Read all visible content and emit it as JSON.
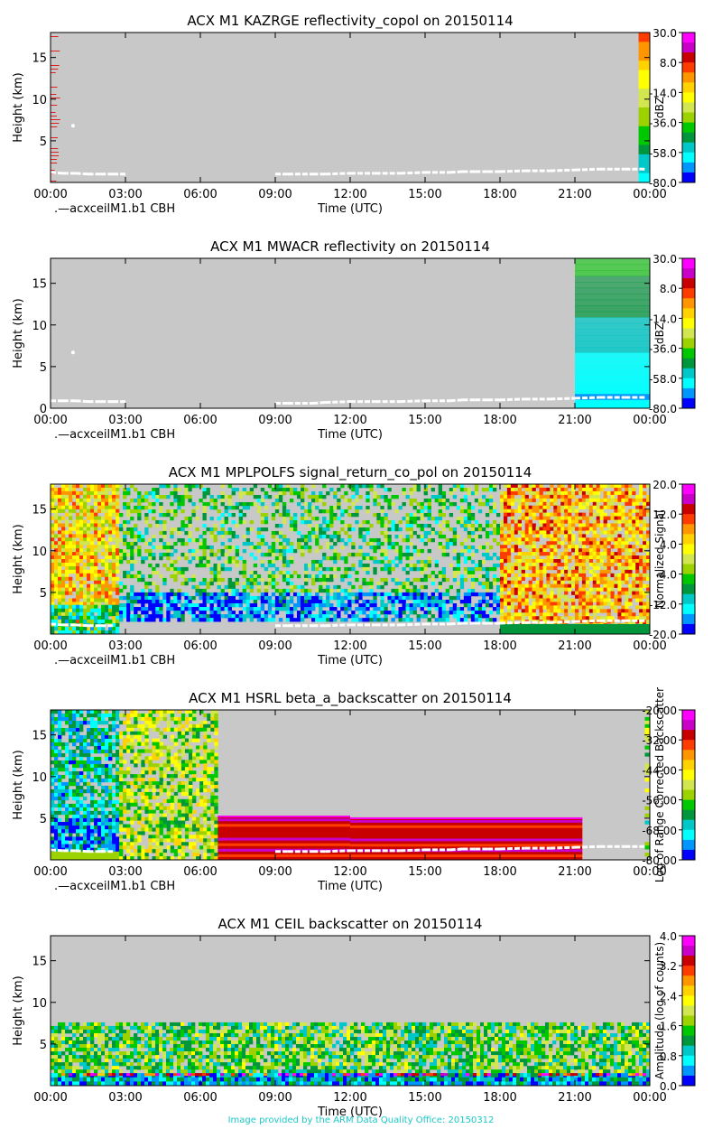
{
  "credit": "Image provided by the ARM Data Quality Office: 20150312",
  "colormap": [
    "#ff00ff",
    "#c800c8",
    "#c80000",
    "#ff3c00",
    "#ff9600",
    "#ffd200",
    "#ffff00",
    "#d2e650",
    "#9bd200",
    "#00c800",
    "#00963c",
    "#00c8c8",
    "#00ffff",
    "#0096ff",
    "#0000ff"
  ],
  "background_color": "#c8c8c8",
  "cbh_color": "#ffffff",
  "chart_data": [
    {
      "type": "heatmap",
      "title": "ACX M1 KAZRGE reflectivity_copol on 20150114",
      "xlabel": "Time (UTC)",
      "ylabel": "Height (km)",
      "xticks": [
        "00:00",
        "03:00",
        "06:00",
        "09:00",
        "12:00",
        "15:00",
        "18:00",
        "21:00",
        "00:00"
      ],
      "yticks": [
        5,
        10,
        15
      ],
      "xlim": [
        0,
        24
      ],
      "ylim": [
        0,
        18
      ],
      "legend": ".—acxceilM1.b1 CBH",
      "colorbar": {
        "label": "dBZ",
        "ticks": [
          "30.0",
          "8.0",
          "-14.0",
          "-36.0",
          "-58.0",
          "-80.0"
        ],
        "range": [
          -80,
          30
        ]
      },
      "cbh": {
        "x": [
          0.0,
          0.5,
          1.0,
          1.5,
          2.0,
          2.5,
          3.0,
          9.0,
          9.5,
          10.5,
          11.0,
          12.0,
          13.0,
          14.0,
          15.0,
          16.0,
          16.5,
          17.0,
          17.5,
          18.0,
          19.0,
          20.0,
          21.0,
          22.0,
          23.0,
          23.8
        ],
        "y": [
          1.2,
          1.1,
          1.1,
          1.0,
          1.0,
          1.0,
          1.0,
          1.0,
          1.0,
          1.0,
          1.0,
          1.1,
          1.1,
          1.1,
          1.2,
          1.2,
          1.3,
          1.3,
          1.3,
          1.3,
          1.4,
          1.4,
          1.5,
          1.6,
          1.6,
          1.6
        ]
      },
      "isolated_points": [
        {
          "x": 0.9,
          "y": 6.8
        }
      ],
      "regions": [
        {
          "x0": 0.0,
          "x1": 0.4,
          "y0": 0,
          "y1": 18,
          "value": -20,
          "density": 0.15,
          "mode": "stripes"
        },
        {
          "x0": 23.55,
          "x1": 24.0,
          "y0": 0,
          "y1": 18,
          "value": -14,
          "density": 1.0,
          "mode": "gradient_top"
        }
      ]
    },
    {
      "type": "heatmap",
      "title": "ACX M1 MWACR reflectivity on 20150114",
      "xlabel": "Time (UTC)",
      "ylabel": "Height (km)",
      "xticks": [
        "00:00",
        "03:00",
        "06:00",
        "09:00",
        "12:00",
        "15:00",
        "18:00",
        "21:00",
        "00:00"
      ],
      "yticks": [
        0,
        5,
        10,
        15
      ],
      "xlim": [
        0,
        24
      ],
      "ylim": [
        0,
        18
      ],
      "legend": ".—acxceilM1.b1 CBH",
      "colorbar": {
        "label": "dBZ",
        "ticks": [
          "30.0",
          "8.0",
          "-14.0",
          "-36.0",
          "-58.0",
          "-80.0"
        ],
        "range": [
          -80,
          30
        ]
      },
      "cbh": {
        "x": [
          0.0,
          0.5,
          1.0,
          1.5,
          2.0,
          2.5,
          3.0,
          9.0,
          9.5,
          10.5,
          11.0,
          12.0,
          13.0,
          14.0,
          15.0,
          16.0,
          16.5,
          17.0,
          17.5,
          18.0,
          19.0,
          20.0,
          21.0,
          22.0,
          23.0,
          23.8
        ],
        "y": [
          0.9,
          0.9,
          0.9,
          0.8,
          0.8,
          0.8,
          0.8,
          0.6,
          0.6,
          0.6,
          0.7,
          0.8,
          0.8,
          0.8,
          0.9,
          0.9,
          1.0,
          1.0,
          1.0,
          1.0,
          1.1,
          1.1,
          1.2,
          1.3,
          1.3,
          1.3
        ]
      },
      "isolated_points": [
        {
          "x": 0.9,
          "y": 6.7
        }
      ],
      "regions": [
        {
          "x0": 21.0,
          "x1": 24.0,
          "y0": 1.0,
          "y1": 18,
          "value": -40,
          "density": 1.0,
          "mode": "vertical_fade"
        },
        {
          "x0": 21.0,
          "x1": 24.0,
          "y0": 0,
          "y1": 1.0,
          "value": -62,
          "density": 1.0,
          "mode": "solid"
        }
      ]
    },
    {
      "type": "heatmap",
      "title": "ACX M1 MPLPOLFS signal_return_co_pol on 20150114",
      "xlabel": "Time (UTC)",
      "ylabel": "Height (km)",
      "xticks": [
        "00:00",
        "03:00",
        "06:00",
        "09:00",
        "12:00",
        "15:00",
        "18:00",
        "21:00",
        "00:00"
      ],
      "yticks": [
        5,
        10,
        15
      ],
      "xlim": [
        0,
        24
      ],
      "ylim": [
        0,
        18
      ],
      "legend": ".—acxceilM1.b1 CBH",
      "colorbar": {
        "label": "Normalized Signal",
        "ticks": [
          "20.0",
          "12.0",
          "4.0",
          "-4.0",
          "-12.0",
          "-20.0"
        ],
        "range": [
          -20,
          20
        ]
      },
      "cbh": {
        "x": [
          0.0,
          0.5,
          1.0,
          1.5,
          2.0,
          2.5,
          9.0,
          9.5,
          10.5,
          11.0,
          12.0,
          13.0,
          14.0,
          15.0,
          16.0,
          16.5,
          17.0,
          17.5,
          18.0,
          19.0,
          20.0,
          21.0,
          22.0,
          23.0,
          23.8
        ],
        "y": [
          1.2,
          1.1,
          1.1,
          1.0,
          1.0,
          1.0,
          1.0,
          1.0,
          1.0,
          1.0,
          1.1,
          1.1,
          1.1,
          1.2,
          1.2,
          1.3,
          1.3,
          1.3,
          1.3,
          1.4,
          1.4,
          1.5,
          1.6,
          1.6,
          1.6
        ]
      },
      "isolated_points": [],
      "regions": [
        {
          "x0": 0.0,
          "x1": 2.75,
          "y0": 0,
          "y1": 18,
          "value": 4,
          "density": 0.85,
          "mode": "noise"
        },
        {
          "x0": 0.0,
          "x1": 2.75,
          "y0": 0,
          "y1": 3.5,
          "value": -8,
          "density": 0.9,
          "mode": "noise"
        },
        {
          "x0": 2.75,
          "x1": 18.0,
          "y0": 5,
          "y1": 18,
          "value": -6,
          "density": 0.45,
          "mode": "noise"
        },
        {
          "x0": 2.75,
          "x1": 18.0,
          "y0": 1.5,
          "y1": 5,
          "value": -15,
          "density": 0.75,
          "mode": "noise"
        },
        {
          "x0": 18.0,
          "x1": 24.0,
          "y0": 0,
          "y1": 18,
          "value": 6,
          "density": 0.8,
          "mode": "noise"
        },
        {
          "x0": 18.0,
          "x1": 24.0,
          "y0": 0,
          "y1": 1.2,
          "value": -8,
          "density": 1.0,
          "mode": "solid"
        }
      ]
    },
    {
      "type": "heatmap",
      "title": "ACX M1 HSRL beta_a_backscatter on 20150114",
      "xlabel": "Time (UTC)",
      "ylabel": "Height (km)",
      "xticks": [
        "00:00",
        "03:00",
        "06:00",
        "09:00",
        "12:00",
        "15:00",
        "18:00",
        "21:00",
        "00:00"
      ],
      "yticks": [
        5,
        10,
        15
      ],
      "xlim": [
        0,
        24
      ],
      "ylim": [
        0,
        18
      ],
      "legend": ".—acxceilM1.b1 CBH",
      "colorbar": {
        "label": "Log of Range Corrected Backscatter",
        "ticks": [
          "-20.00",
          "-32.00",
          "-44.00",
          "-56.00",
          "-68.00",
          "-80.00"
        ],
        "range": [
          -80,
          -20
        ]
      },
      "cbh": {
        "x": [
          0.0,
          0.5,
          1.0,
          1.5,
          2.0,
          2.5,
          9.0,
          9.5,
          10.5,
          11.0,
          12.0,
          13.0,
          14.0,
          15.0,
          16.0,
          16.5,
          17.0,
          17.5,
          18.0,
          19.0,
          20.0,
          21.0,
          22.0,
          23.0,
          23.8
        ],
        "y": [
          1.2,
          1.1,
          1.1,
          1.0,
          1.0,
          1.0,
          1.0,
          1.0,
          1.0,
          1.0,
          1.1,
          1.1,
          1.1,
          1.2,
          1.2,
          1.3,
          1.3,
          1.3,
          1.3,
          1.4,
          1.4,
          1.5,
          1.6,
          1.6,
          1.6
        ]
      },
      "isolated_points": [],
      "regions": [
        {
          "x0": 0.0,
          "x1": 2.75,
          "y0": 5,
          "y1": 18,
          "value": -66,
          "density": 0.75,
          "mode": "noise"
        },
        {
          "x0": 0.0,
          "x1": 2.75,
          "y0": 1,
          "y1": 5,
          "value": -72,
          "density": 0.95,
          "mode": "noise"
        },
        {
          "x0": 0.0,
          "x1": 2.75,
          "y0": 0,
          "y1": 1,
          "value": -54,
          "density": 1.0,
          "mode": "solid"
        },
        {
          "x0": 2.75,
          "x1": 6.7,
          "y0": 0,
          "y1": 18,
          "value": -52,
          "density": 0.7,
          "mode": "noise"
        },
        {
          "x0": 6.7,
          "x1": 12.0,
          "y0": 0,
          "y1": 5.3,
          "value": -27,
          "density": 1.0,
          "mode": "banded"
        },
        {
          "x0": 12.0,
          "x1": 21.3,
          "y0": 0,
          "y1": 5.1,
          "value": -27,
          "density": 1.0,
          "mode": "banded"
        },
        {
          "x0": 23.8,
          "x1": 24.0,
          "y0": 0,
          "y1": 18,
          "value": -55,
          "density": 0.6,
          "mode": "noise"
        }
      ]
    },
    {
      "type": "heatmap",
      "title": "ACX M1 CEIL backscatter on 20150114",
      "xlabel": "Time (UTC)",
      "ylabel": "Height (km)",
      "xticks": [
        "00:00",
        "03:00",
        "06:00",
        "09:00",
        "12:00",
        "15:00",
        "18:00",
        "21:00",
        "00:00"
      ],
      "yticks": [
        5,
        10,
        15
      ],
      "xlim": [
        0,
        24
      ],
      "ylim": [
        0,
        18
      ],
      "legend": "",
      "colorbar": {
        "label": "Amplitude (log of counts)",
        "ticks": [
          "4.0",
          "3.2",
          "2.4",
          "1.6",
          "0.8",
          "0.0"
        ],
        "range": [
          0,
          4
        ]
      },
      "cbh": {
        "x": [],
        "y": []
      },
      "isolated_points": [],
      "regions": [
        {
          "x0": 0.0,
          "x1": 24.0,
          "y0": 1.5,
          "y1": 7.6,
          "value": 1.5,
          "density": 0.8,
          "mode": "noise"
        },
        {
          "x0": 0.0,
          "x1": 24.0,
          "y0": 0,
          "y1": 1.5,
          "value": 0.7,
          "density": 1.0,
          "mode": "noise"
        },
        {
          "x0": 0.0,
          "x1": 24.0,
          "y0": 1.2,
          "y1": 1.5,
          "value": 3.3,
          "density": 0.5,
          "mode": "noise"
        }
      ]
    }
  ]
}
